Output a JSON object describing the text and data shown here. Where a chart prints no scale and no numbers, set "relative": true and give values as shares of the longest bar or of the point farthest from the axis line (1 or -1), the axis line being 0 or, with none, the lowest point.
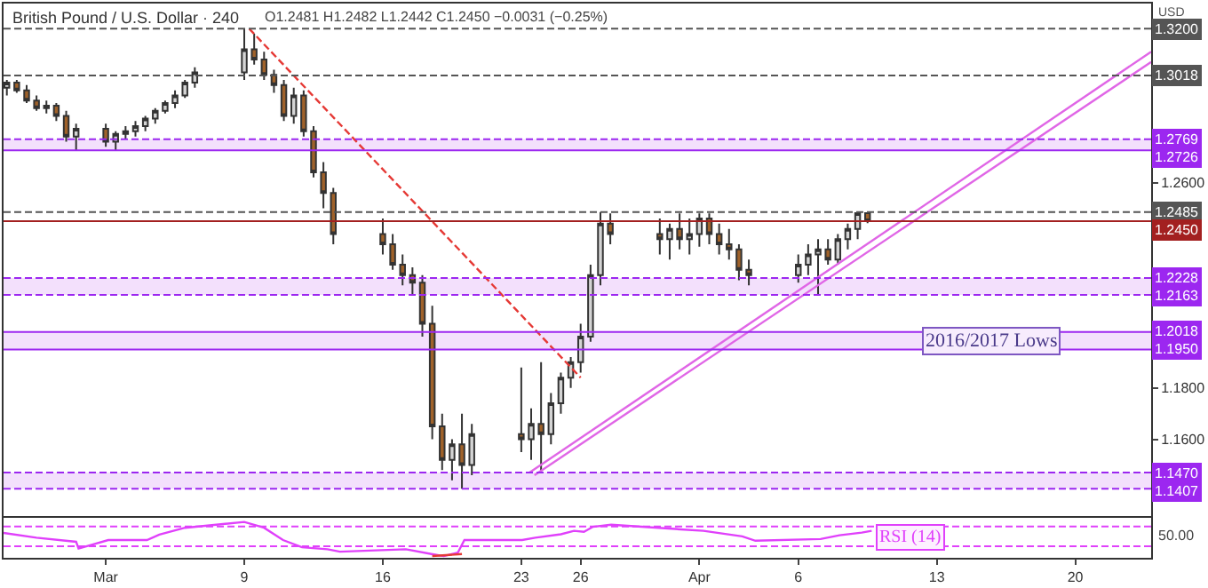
{
  "chart_data": [
    {
      "type": "candlestick",
      "title": "British Pound / U.S. Dollar · 240",
      "subtitle": "O1.2481 H1.2482 L1.2442 C1.2450 −0.0031 (−0.25%)",
      "ylabel": "USD",
      "x": [
        "--02-25T00:00",
        "--02-25T12:00",
        "--02-26T00:00",
        "--02-26T12:00",
        "--02-27T00:00",
        "--02-27T12:00",
        "--02-28T00:00",
        "--02-28T12:00",
        "--03-02T00:00",
        "--03-02T12:00",
        "--03-03T00:00",
        "--03-03T12:00",
        "--03-04T00:00",
        "--03-04T12:00",
        "--03-05T00:00",
        "--03-05T12:00",
        "--03-06T00:00",
        "--03-06T12:00",
        "--03-09T00:00",
        "--03-09T12:00",
        "--03-10T00:00",
        "--03-10T12:00",
        "--03-11T00:00",
        "--03-11T12:00",
        "--03-12T00:00",
        "--03-12T12:00",
        "--03-13T00:00",
        "--03-13T12:00",
        "--03-16T00:00",
        "--03-16T12:00",
        "--03-17T00:00",
        "--03-17T12:00",
        "--03-18T00:00",
        "--03-18T12:00",
        "--03-19T00:00",
        "--03-19T12:00",
        "--03-20T00:00",
        "--03-20T12:00",
        "--03-23T00:00",
        "--03-23T12:00",
        "--03-24T00:00",
        "--03-24T12:00",
        "--03-25T00:00",
        "--03-25T12:00",
        "--03-26T00:00",
        "--03-26T12:00",
        "--03-27T00:00",
        "--03-27T12:00",
        "--03-30T00:00",
        "--03-30T12:00",
        "--03-31T00:00",
        "--03-31T12:00",
        "--04-01T00:00",
        "--04-01T12:00",
        "--04-02T00:00",
        "--04-02T12:00",
        "--04-03T00:00",
        "--04-03T12:00",
        "--04-06T00:00",
        "--04-06T12:00",
        "--04-07T00:00",
        "--04-07T12:00",
        "--04-08T00:00",
        "--04-08T12:00",
        "--04-09T00:00",
        "--04-09T12:00"
      ],
      "ohlc": [
        [
          1.297,
          1.3,
          1.294,
          1.299
        ],
        [
          1.299,
          1.3,
          1.295,
          1.296
        ],
        [
          1.296,
          1.298,
          1.291,
          1.292
        ],
        [
          1.292,
          1.294,
          1.288,
          1.289
        ],
        [
          1.289,
          1.292,
          1.287,
          1.29
        ],
        [
          1.29,
          1.291,
          1.284,
          1.286
        ],
        [
          1.286,
          1.288,
          1.276,
          1.278
        ],
        [
          1.278,
          1.283,
          1.2726,
          1.281
        ],
        [
          1.281,
          1.283,
          1.274,
          1.276
        ],
        [
          1.276,
          1.28,
          1.2726,
          1.279
        ],
        [
          1.279,
          1.282,
          1.277,
          1.28
        ],
        [
          1.28,
          1.284,
          1.278,
          1.282
        ],
        [
          1.282,
          1.286,
          1.28,
          1.285
        ],
        [
          1.285,
          1.289,
          1.283,
          1.288
        ],
        [
          1.288,
          1.292,
          1.287,
          1.291
        ],
        [
          1.291,
          1.296,
          1.289,
          1.294
        ],
        [
          1.294,
          1.3,
          1.293,
          1.299
        ],
        [
          1.299,
          1.305,
          1.297,
          1.303
        ],
        [
          1.303,
          1.32,
          1.3,
          1.312
        ],
        [
          1.312,
          1.318,
          1.306,
          1.308
        ],
        [
          1.308,
          1.311,
          1.3,
          1.302
        ],
        [
          1.302,
          1.304,
          1.295,
          1.298
        ],
        [
          1.298,
          1.3,
          1.284,
          1.286
        ],
        [
          1.286,
          1.297,
          1.283,
          1.294
        ],
        [
          1.294,
          1.296,
          1.278,
          1.28
        ],
        [
          1.28,
          1.282,
          1.262,
          1.264
        ],
        [
          1.264,
          1.268,
          1.25,
          1.256
        ],
        [
          1.256,
          1.258,
          1.236,
          1.24
        ],
        [
          1.24,
          1.246,
          1.232,
          1.236
        ],
        [
          1.236,
          1.24,
          1.226,
          1.228
        ],
        [
          1.228,
          1.232,
          1.22,
          1.224
        ],
        [
          1.224,
          1.227,
          1.216,
          1.221
        ],
        [
          1.221,
          1.224,
          1.2,
          1.205
        ],
        [
          1.205,
          1.212,
          1.16,
          1.165
        ],
        [
          1.165,
          1.17,
          1.148,
          1.152
        ],
        [
          1.152,
          1.16,
          1.144,
          1.158
        ],
        [
          1.158,
          1.17,
          1.1407,
          1.15
        ],
        [
          1.15,
          1.166,
          1.146,
          1.162
        ],
        [
          1.162,
          1.188,
          1.155,
          1.16
        ],
        [
          1.16,
          1.172,
          1.152,
          1.166
        ],
        [
          1.166,
          1.19,
          1.147,
          1.162
        ],
        [
          1.162,
          1.178,
          1.158,
          1.174
        ],
        [
          1.174,
          1.186,
          1.17,
          1.184
        ],
        [
          1.184,
          1.192,
          1.18,
          1.19
        ],
        [
          1.19,
          1.205,
          1.186,
          1.2
        ],
        [
          1.2,
          1.228,
          1.198,
          1.224
        ],
        [
          1.224,
          1.2485,
          1.22,
          1.244
        ],
        [
          1.244,
          1.248,
          1.236,
          1.24
        ],
        [
          1.24,
          1.246,
          1.232,
          1.238
        ],
        [
          1.238,
          1.244,
          1.23,
          1.242
        ],
        [
          1.242,
          1.248,
          1.234,
          1.238
        ],
        [
          1.238,
          1.246,
          1.232,
          1.24
        ],
        [
          1.24,
          1.248,
          1.235,
          1.246
        ],
        [
          1.246,
          1.248,
          1.236,
          1.24
        ],
        [
          1.24,
          1.244,
          1.232,
          1.236
        ],
        [
          1.236,
          1.242,
          1.23,
          1.234
        ],
        [
          1.234,
          1.236,
          1.222,
          1.226
        ],
        [
          1.226,
          1.23,
          1.22,
          1.224
        ],
        [
          1.224,
          1.232,
          1.221,
          1.228
        ],
        [
          1.228,
          1.236,
          1.224,
          1.232
        ],
        [
          1.232,
          1.238,
          1.2163,
          1.234
        ],
        [
          1.234,
          1.238,
          1.228,
          1.23
        ],
        [
          1.23,
          1.24,
          1.228,
          1.238
        ],
        [
          1.238,
          1.244,
          1.234,
          1.242
        ],
        [
          1.242,
          1.2485,
          1.238,
          1.2481
        ],
        [
          1.2481,
          1.2482,
          1.2442,
          1.245
        ]
      ],
      "series": [
        {
          "type": "line",
          "color": "#e53935",
          "line_style": "dashed",
          "x": [
            "--03-09T06:00",
            "--03-26T00:00"
          ],
          "values": [
            1.32,
            1.184
          ]
        },
        {
          "type": "line",
          "color": "#e066e6",
          "x": [
            "--03-23T10:00",
            "--04-23T20:00"
          ],
          "values": [
            1.147,
            1.311
          ]
        },
        {
          "type": "line",
          "color": "#e066e6",
          "x": [
            "--03-23T16:00",
            "--04-23T20:00"
          ],
          "values": [
            1.146,
            1.307
          ]
        }
      ],
      "bands": [
        {
          "axis": "y",
          "from": 1.2726,
          "to": 1.2769,
          "color": "#f3e0fc"
        },
        {
          "axis": "y",
          "from": 1.2163,
          "to": 1.2228,
          "color": "#f3e0fc"
        },
        {
          "axis": "y",
          "from": 1.195,
          "to": 1.2018,
          "color": "#f3e0fc",
          "label": "2016/2017 Lows"
        },
        {
          "axis": "y",
          "from": 1.1407,
          "to": 1.147,
          "color": "#f3e0fc"
        }
      ],
      "ref_lines": [
        {
          "axis": "y",
          "value": 1.32,
          "label": "1.3200",
          "color": "#555555",
          "line_style": "dashed"
        },
        {
          "axis": "y",
          "value": 1.3018,
          "label": "1.3018",
          "color": "#555555",
          "line_style": "dashed"
        },
        {
          "axis": "y",
          "value": 1.2769,
          "label": "1.2769",
          "color": "#9c27f0",
          "line_style": "dashed"
        },
        {
          "axis": "y",
          "value": 1.2726,
          "label": "1.2726",
          "color": "#9c27f0",
          "line_style": "solid"
        },
        {
          "axis": "y",
          "value": 1.2485,
          "label": "1.2485",
          "color": "#555555",
          "line_style": "dashed"
        },
        {
          "axis": "y",
          "value": 1.245,
          "label": "1.2450",
          "color": "#a32020",
          "line_style": "solid"
        },
        {
          "axis": "y",
          "value": 1.2228,
          "label": "1.2228",
          "color": "#9c27f0",
          "line_style": "dashed"
        },
        {
          "axis": "y",
          "value": 1.2163,
          "label": "1.2163",
          "color": "#9c27f0",
          "line_style": "dashed"
        },
        {
          "axis": "y",
          "value": 1.2018,
          "label": "1.2018",
          "color": "#9c27f0",
          "line_style": "solid"
        },
        {
          "axis": "y",
          "value": 1.195,
          "label": "1.1950",
          "color": "#9c27f0",
          "line_style": "solid"
        },
        {
          "axis": "y",
          "value": 1.147,
          "label": "1.1470",
          "color": "#9c27f0",
          "line_style": "dashed"
        },
        {
          "axis": "y",
          "value": 1.1407,
          "label": "1.1407",
          "color": "#9c27f0",
          "line_style": "dashed"
        }
      ],
      "xlim": [
        "--02-24T20:00",
        "--04-23T20:00"
      ],
      "xticks": [
        {
          "value": "--03-02",
          "label": "Mar"
        },
        {
          "value": "--03-09",
          "label": "9"
        },
        {
          "value": "--03-16",
          "label": "16"
        },
        {
          "value": "--03-23",
          "label": "23"
        },
        {
          "value": "--03-26",
          "label": "26"
        },
        {
          "value": "--04-01",
          "label": "Apr"
        },
        {
          "value": "--04-06",
          "label": "6"
        },
        {
          "value": "--04-13",
          "label": "13"
        },
        {
          "value": "--04-20",
          "label": "20"
        }
      ],
      "ylim": [
        1.13,
        1.3298
      ],
      "yticks": [
        {
          "value": 1.16,
          "label": "1.1600"
        },
        {
          "value": 1.18,
          "label": "1.1800"
        },
        {
          "value": 1.26,
          "label": "1.2600"
        }
      ],
      "tick_labels": "y"
    },
    {
      "type": "line",
      "relative": true,
      "series": [
        {
          "color": "#e040fb",
          "x": [
            "--02-24T20:00",
            "--02-26T12:00",
            "--02-28T12:00",
            "--02-28T15:00",
            "--03-02T03:00",
            "--03-04T02:00",
            "--03-04T17:00",
            "--03-06T00:00",
            "--03-09T00:00",
            "--03-10T00:00",
            "--03-10T23:00",
            "--03-11T22:00",
            "--03-13T05:00",
            "--03-13T20:00",
            "--03-17T04:00",
            "--03-18T11:00",
            "--03-19T02:00",
            "--03-19T19:00",
            "--03-20T03:00",
            "--03-23T01:00",
            "--03-23T17:00",
            "--03-25T00:00",
            "--03-25T16:00",
            "--03-26T04:00",
            "--03-26T15:00",
            "--03-27T13:00",
            "--04-01T05:00",
            "--04-03T04:00",
            "--04-03T20:00",
            "--04-07T03:00",
            "--04-08T02:00",
            "--04-09T05:00",
            "--04-09T17:00"
          ],
          "values": [
            0.68,
            0.54,
            0.42,
            0.22,
            0.47,
            0.47,
            0.63,
            0.83,
            1,
            0.83,
            0.47,
            0.26,
            0.2,
            0.13,
            0.2,
            0.06,
            0,
            0.1,
            0.47,
            0.47,
            0.54,
            0.64,
            0.74,
            0.71,
            0.86,
            0.92,
            0.74,
            0.58,
            0.45,
            0.5,
            0.61,
            0.69,
            0.74
          ]
        },
        {
          "color": "#e53935",
          "x": [
            "--03-18T12:00",
            "--03-20T00:00"
          ],
          "values": [
            0.0,
            0.06
          ]
        }
      ],
      "ref_lines": [
        {
          "axis": "y",
          "value": 0.87,
          "color": "#e040fb",
          "line_style": "dashed"
        },
        {
          "axis": "y",
          "value": 0.29,
          "color": "#e040fb",
          "line_style": "dashed"
        }
      ],
      "annotations": [
        "RSI (14)",
        "50.00"
      ],
      "xlim": [
        "--02-24T20:00",
        "--04-23T20:00"
      ],
      "xticks": [
        {
          "value": "--03-02",
          "label": "Mar"
        },
        {
          "value": "--03-09",
          "label": "9"
        },
        {
          "value": "--03-16",
          "label": "16"
        },
        {
          "value": "--03-23",
          "label": "23"
        },
        {
          "value": "--03-26",
          "label": "26"
        },
        {
          "value": "--04-01",
          "label": "Apr"
        },
        {
          "value": "--04-06",
          "label": "6"
        },
        {
          "value": "--04-13",
          "label": "13"
        },
        {
          "value": "--04-20",
          "label": "20"
        }
      ],
      "tick_labels": "x"
    }
  ]
}
